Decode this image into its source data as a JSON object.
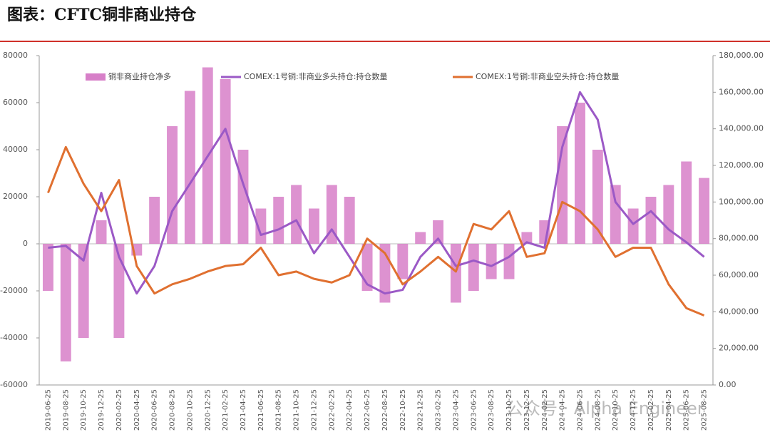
{
  "chart_data": {
    "type": "bar-line",
    "title": "图表：CFTC铜非商业持仓",
    "watermark": "公众号 · Alpha Engineer",
    "categories": [
      "2019-06-25",
      "2019-08-25",
      "2019-10-25",
      "2019-12-25",
      "2020-02-25",
      "2020-04-25",
      "2020-06-25",
      "2020-08-25",
      "2020-10-25",
      "2020-12-25",
      "2021-02-25",
      "2021-04-25",
      "2021-06-25",
      "2021-08-25",
      "2021-10-25",
      "2021-12-25",
      "2022-02-25",
      "2022-04-25",
      "2022-06-25",
      "2022-08-25",
      "2022-10-25",
      "2022-12-25",
      "2023-02-25",
      "2023-04-25",
      "2023-06-25",
      "2023-08-25",
      "2023-10-25",
      "2023-12-25",
      "2024-02-25",
      "2024-04-25",
      "2024-06-25",
      "2024-08-25",
      "2024-10-25",
      "2024-12-25",
      "2025-02-25",
      "2025-04-25",
      "2025-06-25",
      "2025-08-25"
    ],
    "series": [
      {
        "name": "铜非商业持仓净多",
        "type": "bar",
        "axis": "y",
        "color": "#d77fc8",
        "values": [
          -20000,
          -50000,
          -40000,
          10000,
          -40000,
          -5000,
          20000,
          50000,
          65000,
          75000,
          70000,
          40000,
          15000,
          20000,
          25000,
          15000,
          25000,
          20000,
          -20000,
          -25000,
          -15000,
          5000,
          10000,
          -25000,
          -20000,
          -15000,
          -15000,
          5000,
          10000,
          50000,
          60000,
          40000,
          25000,
          15000,
          20000,
          25000,
          35000,
          28000
        ]
      },
      {
        "name": "COMEX:1号铜:非商业多头持仓:持仓数量",
        "type": "line",
        "axis": "y2",
        "color": "#9b59c6",
        "values": [
          75000,
          76000,
          68000,
          105000,
          70000,
          50000,
          65000,
          95000,
          110000,
          125000,
          140000,
          110000,
          82000,
          85000,
          90000,
          72000,
          85000,
          70000,
          55000,
          50000,
          52000,
          70000,
          80000,
          65000,
          68000,
          65000,
          70000,
          78000,
          75000,
          130000,
          160000,
          145000,
          100000,
          88000,
          95000,
          85000,
          78000,
          70000
        ]
      },
      {
        "name": "COMEX:1号铜:非商业空头持仓:持仓数量",
        "type": "line",
        "axis": "y2",
        "color": "#e07030",
        "values": [
          105000,
          130000,
          110000,
          95000,
          112000,
          65000,
          50000,
          55000,
          58000,
          62000,
          65000,
          66000,
          75000,
          60000,
          62000,
          58000,
          56000,
          60000,
          80000,
          72000,
          55000,
          62000,
          70000,
          62000,
          88000,
          85000,
          95000,
          70000,
          72000,
          100000,
          95000,
          85000,
          70000,
          75000,
          75000,
          55000,
          42000,
          38000
        ]
      }
    ],
    "ylim": [
      -60000,
      80000
    ],
    "yticks": [
      -60000,
      -40000,
      -20000,
      0,
      20000,
      40000,
      60000,
      80000
    ],
    "y2lim": [
      0,
      180000
    ],
    "y2ticks": [
      {
        "value": 0,
        "label": "0.00"
      },
      {
        "value": 20000,
        "label": "20,000.00"
      },
      {
        "value": 40000,
        "label": "40,000.00"
      },
      {
        "value": 60000,
        "label": "60,000.00"
      },
      {
        "value": 80000,
        "label": "80,000.00"
      },
      {
        "value": 100000,
        "label": "100,000.00"
      },
      {
        "value": 120000,
        "label": "120,000.00"
      },
      {
        "value": 140000,
        "label": "140,000.00"
      },
      {
        "value": 160000,
        "label": "160,000.00"
      },
      {
        "value": 180000,
        "label": "180,000.00"
      }
    ]
  }
}
